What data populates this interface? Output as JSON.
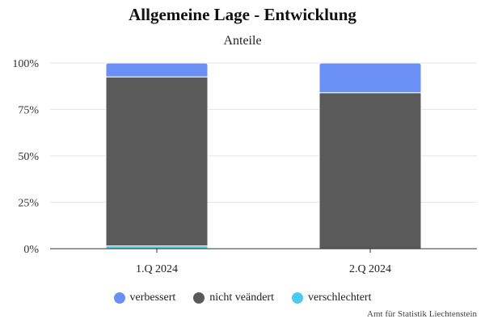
{
  "chart_data": {
    "type": "bar",
    "stacked": true,
    "title": "Allgemeine Lage - Entwicklung",
    "subtitle": "Anteile",
    "categories": [
      "1.Q 2024",
      "2.Q 2024"
    ],
    "series": [
      {
        "name": "verschlechtert",
        "color": "#4cc9f0",
        "values": [
          1.5,
          0
        ]
      },
      {
        "name": "nicht veändert",
        "color": "#5a5a5a",
        "values": [
          91,
          84
        ]
      },
      {
        "name": "verbessert",
        "color": "#6a8ff5",
        "values": [
          7.5,
          16
        ]
      }
    ],
    "legend_order": [
      "verbessert",
      "nicht veändert",
      "verschlechtert"
    ],
    "ylim": [
      0,
      100
    ],
    "yticks": [
      "0%",
      "25%",
      "50%",
      "75%",
      "100%"
    ],
    "ytick_values": [
      0,
      25,
      50,
      75,
      100
    ],
    "grid": true,
    "legend_position": "bottom",
    "xlabel": "",
    "ylabel": ""
  },
  "credit": "Amt für Statistik Liechtenstein"
}
